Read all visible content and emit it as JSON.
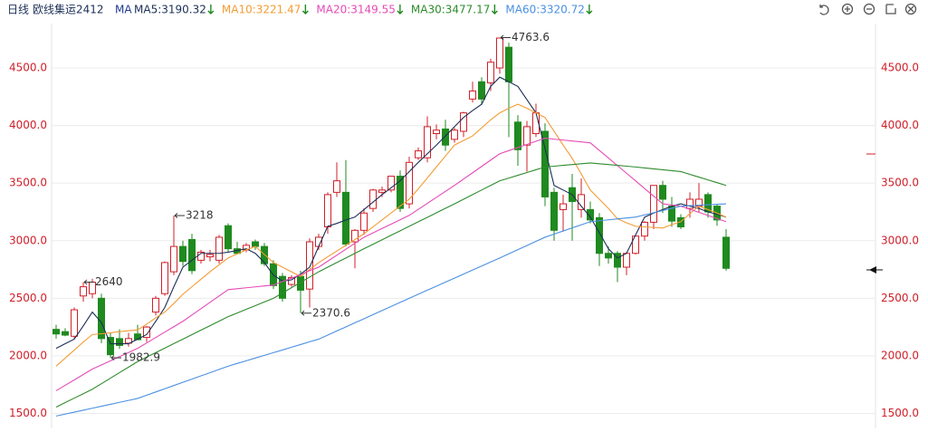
{
  "chart_data": {
    "type": "candlestick",
    "period": "日线",
    "title": "欧线集运2412",
    "indicator": "MA",
    "ylim": [
      1370,
      4870
    ],
    "yticks": [
      {
        "value": 1500,
        "label": "1500.0"
      },
      {
        "value": 2000,
        "label": "2000.0"
      },
      {
        "value": 2500,
        "label": "2500.0"
      },
      {
        "value": 3000,
        "label": "3000.0"
      },
      {
        "value": 3500,
        "label": "3500.0"
      },
      {
        "value": 4000,
        "label": "4000.0"
      },
      {
        "value": 4500,
        "label": "4500.0"
      }
    ],
    "grid": true,
    "up_color": "#d0202a",
    "down_color": "#1f8a1f",
    "candles": {
      "open": [
        2230,
        2210,
        2170,
        2520,
        2540,
        2500,
        2160,
        2150,
        2110,
        2190,
        2160,
        2380,
        2540,
        2730,
        2950,
        3010,
        2830,
        2860,
        2830,
        3130,
        2930,
        2920,
        2990,
        2950,
        2800,
        2690,
        2620,
        2690,
        2580,
        2950,
        3120,
        3420,
        3420,
        2990,
        3090,
        3280,
        3420,
        3440,
        3560,
        3320,
        3720,
        3720,
        3930,
        3970,
        3880,
        3950,
        4230,
        4380,
        4370,
        4500,
        4680,
        4030,
        3830,
        3930,
        3950,
        3420,
        3270,
        3460,
        3270,
        3270,
        3200,
        2890,
        2890,
        2770,
        2890,
        3040,
        3160,
        3480,
        3300,
        3200,
        3280,
        3300,
        3400,
        3300,
        3030
      ],
      "high": [
        2270,
        2240,
        2420,
        2640,
        2670,
        2540,
        2200,
        2230,
        2200,
        2270,
        2260,
        2520,
        2820,
        3218,
        3000,
        3060,
        2920,
        2920,
        3050,
        3150,
        2990,
        2980,
        3010,
        2980,
        2830,
        2720,
        2700,
        2740,
        3020,
        3060,
        3420,
        3680,
        3700,
        3100,
        3280,
        3450,
        3470,
        3560,
        3610,
        3730,
        3810,
        4080,
        4010,
        4050,
        3980,
        4120,
        4380,
        4420,
        4580,
        4763.6,
        4720,
        4090,
        4040,
        4190,
        4020,
        3460,
        3400,
        3580,
        3540,
        3340,
        3240,
        2950,
        2910,
        2900,
        3050,
        3170,
        3480,
        3520,
        3380,
        3230,
        3420,
        3500,
        3420,
        3320,
        3100
      ],
      "low": [
        2150,
        2170,
        2150,
        2470,
        2500,
        2110,
        1982.9,
        2060,
        2080,
        2150,
        2120,
        2350,
        2520,
        2700,
        2780,
        2710,
        2800,
        2820,
        2800,
        2900,
        2880,
        2900,
        2920,
        2780,
        2580,
        2470,
        2600,
        2370.6,
        2420,
        2920,
        3060,
        3380,
        2950,
        2760,
        3050,
        3250,
        3380,
        3420,
        3250,
        3280,
        3700,
        3680,
        3880,
        3780,
        3850,
        3900,
        4200,
        4180,
        4300,
        4450,
        3900,
        3650,
        3600,
        3900,
        3300,
        3000,
        3080,
        3000,
        3200,
        3150,
        2780,
        2800,
        2640,
        2700,
        2880,
        3000,
        3100,
        3240,
        3120,
        3100,
        3200,
        3250,
        3200,
        3130,
        2740
      ],
      "close": [
        2190,
        2180,
        2400,
        2600,
        2640,
        2150,
        2010,
        2090,
        2150,
        2140,
        2250,
        2500,
        2810,
        2950,
        2820,
        2740,
        2900,
        2880,
        3030,
        2930,
        2890,
        2960,
        2950,
        2800,
        2610,
        2500,
        2680,
        2570,
        2990,
        3030,
        3400,
        3520,
        2970,
        3090,
        3240,
        3440,
        3440,
        3560,
        3280,
        3680,
        3780,
        3990,
        3960,
        3830,
        3960,
        4110,
        4300,
        4230,
        4550,
        4760,
        4380,
        3790,
        3990,
        4110,
        3380,
        3090,
        3320,
        3340,
        3400,
        3180,
        2890,
        2850,
        2770,
        2890,
        3040,
        3160,
        3480,
        3360,
        3170,
        3120,
        3360,
        3360,
        3250,
        3180,
        2760
      ]
    },
    "annotations": [
      4763.6,
      3218,
      1982.9,
      2370.6,
      2640
    ],
    "series": [
      {
        "name": "MA5:3190.32",
        "color": "#1c2f57",
        "values": [
          2065,
          2105,
          2145,
          2260,
          2380,
          2290,
          2105,
          2105,
          2105,
          2145,
          2185,
          2300,
          2420,
          2600,
          2770,
          2830,
          2890,
          2890,
          2890,
          2900,
          2915,
          2930,
          2890,
          2810,
          2700,
          2650,
          2660,
          2710,
          2770,
          2950,
          3125,
          3150,
          3180,
          3205,
          3270,
          3335,
          3400,
          3460,
          3520,
          3600,
          3680,
          3755,
          3830,
          3910,
          3990,
          4070,
          4130,
          4185,
          4340,
          4420,
          4380,
          4340,
          4225,
          4110,
          3800,
          3480,
          3440,
          3400,
          3300,
          3205,
          3070,
          2930,
          2850,
          2890,
          3050,
          3205,
          3240,
          3270,
          3300,
          3320,
          3300,
          3280,
          3250,
          3230,
          3205
        ]
      },
      {
        "name": "MA10:3221.47",
        "color": "#f39c34",
        "values": [
          1910,
          1980,
          2050,
          2120,
          2185,
          2192,
          2200,
          2210,
          2218,
          2225,
          2275,
          2330,
          2380,
          2455,
          2535,
          2600,
          2665,
          2730,
          2790,
          2850,
          2885,
          2920,
          2950,
          2880,
          2810,
          2770,
          2730,
          2690,
          2750,
          2810,
          2860,
          2910,
          2960,
          3010,
          3060,
          3120,
          3180,
          3240,
          3300,
          3360,
          3450,
          3545,
          3640,
          3735,
          3830,
          3870,
          3910,
          3980,
          4050,
          4110,
          4150,
          4185,
          4150,
          4110,
          4070,
          3950,
          3830,
          3715,
          3580,
          3440,
          3360,
          3280,
          3190,
          3155,
          3125,
          3120,
          3115,
          3110,
          3140,
          3165,
          3235,
          3300,
          3270,
          3240,
          3205
        ]
      },
      {
        "name": "MA20:3149.55",
        "color": "#e54bb5",
        "values": [
          1697,
          1744,
          1791,
          1838,
          1885,
          1921,
          1957,
          1993,
          2029,
          2065,
          2112,
          2159,
          2206,
          2253,
          2300,
          2355,
          2410,
          2465,
          2520,
          2575,
          2583,
          2591,
          2599,
          2607,
          2615,
          2645,
          2675,
          2705,
          2740,
          2770,
          2822,
          2874,
          2926,
          2978,
          3030,
          3068,
          3106,
          3144,
          3182,
          3220,
          3272,
          3324,
          3376,
          3428,
          3480,
          3535,
          3590,
          3645,
          3700,
          3755,
          3782,
          3809,
          3836,
          3863,
          3890,
          3882,
          3874,
          3866,
          3858,
          3850,
          3784,
          3718,
          3652,
          3586,
          3520,
          3453,
          3387,
          3320,
          3310,
          3300,
          3273,
          3246,
          3219,
          3192,
          3165
        ]
      },
      {
        "name": "MA30:3477.17",
        "color": "#2e8b2e",
        "values": [
          1555,
          1594,
          1633,
          1671,
          1710,
          1758,
          1806,
          1854,
          1902,
          1950,
          1989,
          2028,
          2067,
          2106,
          2145,
          2184,
          2223,
          2262,
          2301,
          2340,
          2372,
          2404,
          2436,
          2468,
          2500,
          2546,
          2592,
          2638,
          2684,
          2730,
          2770,
          2810,
          2850,
          2890,
          2930,
          2969,
          3008,
          3047,
          3086,
          3125,
          3164,
          3203,
          3242,
          3281,
          3320,
          3360,
          3400,
          3440,
          3480,
          3520,
          3544,
          3568,
          3592,
          3616,
          3640,
          3647,
          3654,
          3661,
          3668,
          3675,
          3668,
          3661,
          3654,
          3647,
          3640,
          3632,
          3624,
          3616,
          3608,
          3600,
          3576,
          3552,
          3528,
          3504,
          3480
        ]
      },
      {
        "name": "MA60:3320.72",
        "color": "#4a90e2",
        "values": [
          1477,
          1494,
          1511,
          1528,
          1545,
          1562,
          1579,
          1596,
          1613,
          1630,
          1658,
          1686,
          1714,
          1742,
          1770,
          1798,
          1826,
          1854,
          1882,
          1910,
          1934,
          1957,
          1981,
          2004,
          2028,
          2051,
          2075,
          2098,
          2122,
          2145,
          2180,
          2216,
          2251,
          2287,
          2322,
          2358,
          2393,
          2429,
          2464,
          2500,
          2535,
          2570,
          2605,
          2640,
          2675,
          2710,
          2745,
          2780,
          2815,
          2850,
          2886,
          2922,
          2958,
          2994,
          3030,
          3057,
          3084,
          3111,
          3138,
          3165,
          3173,
          3181,
          3189,
          3197,
          3205,
          3224,
          3243,
          3262,
          3281,
          3300,
          3304,
          3308,
          3312,
          3316,
          3320
        ]
      }
    ]
  }
}
